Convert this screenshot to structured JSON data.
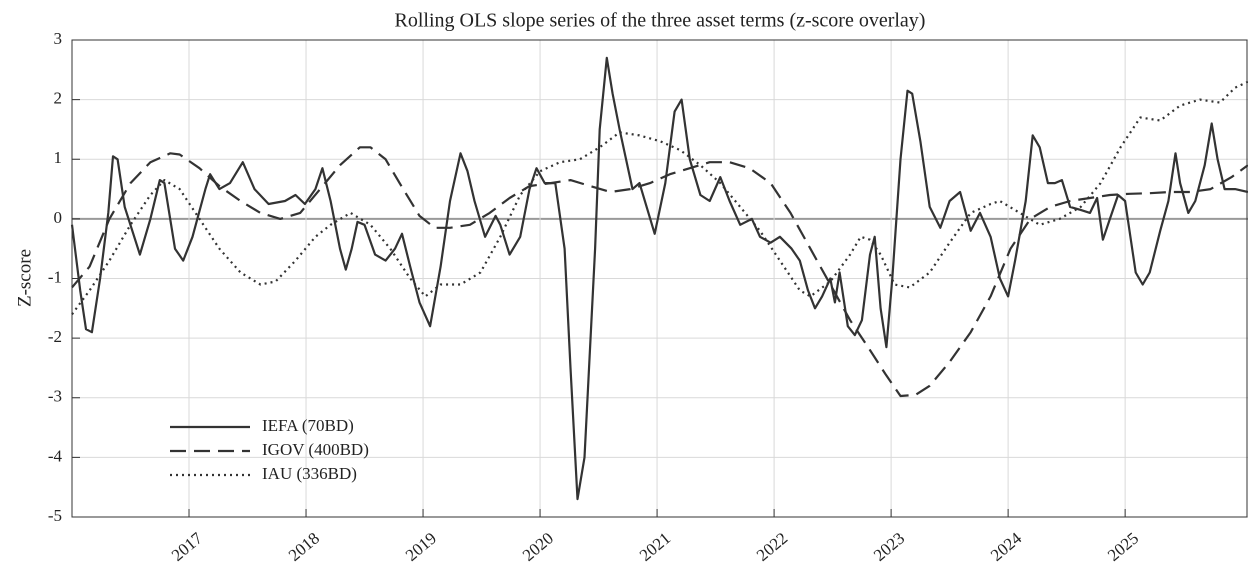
{
  "chart_data": {
    "type": "line",
    "title": "Rolling OLS slope series of the three asset terms (z-score overlay)",
    "ylabel": "Z-score",
    "xlim": [
      2016,
      2026.05
    ],
    "xticks": [
      2017,
      2018,
      2019,
      2020,
      2021,
      2022,
      2023,
      2024,
      2025
    ],
    "ylim": [
      -5,
      3
    ],
    "yticks": [
      -5,
      -4,
      -3,
      -2,
      -1,
      0,
      1,
      2,
      3
    ],
    "grid": true,
    "legend": "lower left",
    "series": [
      {
        "name": "IEFA (70BD)",
        "color": "#333333",
        "linestyle": "solid",
        "x": [
          2016,
          2016.07,
          2016.12,
          2016.17,
          2016.24,
          2016.31,
          2016.35,
          2016.39,
          2016.45,
          2016.58,
          2016.67,
          2016.75,
          2016.79,
          2016.88,
          2016.95,
          2017.03,
          2017.14,
          2017.18,
          2017.26,
          2017.35,
          2017.46,
          2017.56,
          2017.68,
          2017.82,
          2017.91,
          2017.99,
          2018.08,
          2018.14,
          2018.21,
          2018.29,
          2018.34,
          2018.39,
          2018.44,
          2018.5,
          2018.59,
          2018.68,
          2018.76,
          2018.82,
          2018.89,
          2018.97,
          2019.06,
          2019.15,
          2019.23,
          2019.32,
          2019.38,
          2019.44,
          2019.53,
          2019.62,
          2019.66,
          2019.74,
          2019.83,
          2019.91,
          2019.97,
          2020.04,
          2020.13,
          2020.21,
          2020.26,
          2020.32,
          2020.38,
          2020.47,
          2020.51,
          2020.57,
          2020.62,
          2020.68,
          2020.79,
          2020.85,
          2020.98,
          2021.07,
          2021.15,
          2021.21,
          2021.28,
          2021.37,
          2021.45,
          2021.54,
          2021.62,
          2021.71,
          2021.81,
          2021.88,
          2021.97,
          2022.05,
          2022.15,
          2022.22,
          2022.29,
          2022.35,
          2022.41,
          2022.48,
          2022.52,
          2022.56,
          2022.63,
          2022.69,
          2022.75,
          2022.82,
          2022.86,
          2022.91,
          2022.96,
          2023.01,
          2023.08,
          2023.14,
          2023.18,
          2023.25,
          2023.33,
          2023.42,
          2023.5,
          2023.59,
          2023.68,
          2023.76,
          2023.85,
          2023.93,
          2024,
          2024.06,
          2024.15,
          2024.21,
          2024.27,
          2024.34,
          2024.4,
          2024.46,
          2024.53,
          2024.62,
          2024.7,
          2024.76,
          2024.81,
          2024.87,
          2024.94,
          2025,
          2025.09,
          2025.15,
          2025.21,
          2025.3,
          2025.37,
          2025.43,
          2025.47,
          2025.54,
          2025.6,
          2025.68,
          2025.74,
          2025.79,
          2025.85,
          2025.94,
          2026.05
        ],
        "values": [
          -0.1,
          -1.2,
          -1.85,
          -1.9,
          -1.0,
          0.1,
          1.05,
          1.0,
          0.2,
          -0.6,
          0.0,
          0.65,
          0.6,
          -0.5,
          -0.7,
          -0.3,
          0.5,
          0.75,
          0.5,
          0.6,
          0.95,
          0.5,
          0.25,
          0.3,
          0.4,
          0.25,
          0.5,
          0.85,
          0.3,
          -0.5,
          -0.85,
          -0.5,
          -0.05,
          -0.1,
          -0.6,
          -0.7,
          -0.5,
          -0.25,
          -0.8,
          -1.4,
          -1.8,
          -0.8,
          0.3,
          1.1,
          0.8,
          0.3,
          -0.3,
          0.05,
          -0.1,
          -0.6,
          -0.3,
          0.5,
          0.85,
          0.6,
          0.6,
          -0.5,
          -2.5,
          -4.7,
          -4.0,
          -0.5,
          1.5,
          2.7,
          2.1,
          1.5,
          0.5,
          0.6,
          -0.25,
          0.6,
          1.8,
          2.0,
          1.0,
          0.4,
          0.3,
          0.7,
          0.3,
          -0.1,
          0.0,
          -0.3,
          -0.4,
          -0.3,
          -0.5,
          -0.7,
          -1.2,
          -1.5,
          -1.3,
          -1.0,
          -1.4,
          -0.9,
          -1.8,
          -1.95,
          -1.7,
          -0.6,
          -0.3,
          -1.5,
          -2.15,
          -1.0,
          1.0,
          2.15,
          2.1,
          1.3,
          0.2,
          -0.15,
          0.3,
          0.45,
          -0.2,
          0.1,
          -0.3,
          -1.0,
          -1.3,
          -0.7,
          0.3,
          1.4,
          1.2,
          0.6,
          0.6,
          0.65,
          0.2,
          0.15,
          0.1,
          0.35,
          -0.35,
          0.0,
          0.4,
          0.3,
          -0.9,
          -1.1,
          -0.9,
          -0.2,
          0.3,
          1.1,
          0.6,
          0.1,
          0.3,
          0.9,
          1.6,
          1.0,
          0.5,
          0.5,
          0.45
        ]
      },
      {
        "name": "IGOV (400BD)",
        "color": "#333333",
        "linestyle": "dashed",
        "x": [
          2016,
          2016.15,
          2016.32,
          2016.5,
          2016.67,
          2016.84,
          2016.92,
          2017.09,
          2017.26,
          2017.44,
          2017.61,
          2017.78,
          2017.95,
          2018.12,
          2018.29,
          2018.46,
          2018.55,
          2018.68,
          2018.8,
          2018.97,
          2019.1,
          2019.23,
          2019.4,
          2019.57,
          2019.74,
          2019.91,
          2020.09,
          2020.26,
          2020.43,
          2020.6,
          2020.77,
          2020.94,
          2021.11,
          2021.28,
          2021.45,
          2021.62,
          2021.79,
          2021.97,
          2022.14,
          2022.31,
          2022.48,
          2022.65,
          2022.82,
          2022.95,
          2023.08,
          2023.21,
          2023.33,
          2023.5,
          2023.68,
          2023.85,
          2024.02,
          2024.19,
          2024.36,
          2024.53,
          2024.7,
          2024.87,
          2025.04,
          2025.21,
          2025.38,
          2025.56,
          2025.73,
          2025.91,
          2026.05
        ],
        "values": [
          -1.15,
          -0.8,
          0.0,
          0.6,
          0.95,
          1.1,
          1.08,
          0.85,
          0.55,
          0.3,
          0.1,
          0.0,
          0.1,
          0.5,
          0.9,
          1.2,
          1.2,
          1.0,
          0.6,
          0.05,
          -0.15,
          -0.15,
          -0.1,
          0.1,
          0.35,
          0.55,
          0.6,
          0.65,
          0.55,
          0.45,
          0.5,
          0.6,
          0.75,
          0.85,
          0.95,
          0.95,
          0.85,
          0.6,
          0.1,
          -0.5,
          -1.1,
          -1.7,
          -2.2,
          -2.6,
          -2.97,
          -2.95,
          -2.8,
          -2.4,
          -1.9,
          -1.3,
          -0.5,
          0.0,
          0.2,
          0.3,
          0.35,
          0.4,
          0.42,
          0.43,
          0.45,
          0.45,
          0.5,
          0.7,
          0.9
        ]
      },
      {
        "name": "IAU (336BD)",
        "color": "#333333",
        "linestyle": "dotted",
        "x": [
          2016,
          2016.15,
          2016.32,
          2016.5,
          2016.67,
          2016.79,
          2016.92,
          2017.09,
          2017.26,
          2017.44,
          2017.61,
          2017.74,
          2017.91,
          2018.08,
          2018.21,
          2018.38,
          2018.55,
          2018.72,
          2018.89,
          2019.02,
          2019.15,
          2019.32,
          2019.49,
          2019.66,
          2019.83,
          2020,
          2020.17,
          2020.34,
          2020.51,
          2020.68,
          2020.85,
          2021.03,
          2021.2,
          2021.37,
          2021.54,
          2021.71,
          2021.88,
          2022.05,
          2022.22,
          2022.31,
          2022.48,
          2022.65,
          2022.74,
          2022.82,
          2022.91,
          2023.03,
          2023.16,
          2023.33,
          2023.5,
          2023.68,
          2023.85,
          2023.93,
          2024.1,
          2024.27,
          2024.44,
          2024.62,
          2024.79,
          2024.96,
          2025.13,
          2025.3,
          2025.47,
          2025.64,
          2025.81,
          2025.94,
          2026.05
        ],
        "values": [
          -1.6,
          -1.2,
          -0.7,
          -0.1,
          0.4,
          0.65,
          0.5,
          0.0,
          -0.5,
          -0.9,
          -1.1,
          -1.05,
          -0.7,
          -0.3,
          -0.1,
          0.1,
          -0.1,
          -0.5,
          -1.0,
          -1.3,
          -1.1,
          -1.1,
          -0.9,
          -0.3,
          0.4,
          0.8,
          0.95,
          1.0,
          1.2,
          1.45,
          1.4,
          1.3,
          1.15,
          0.9,
          0.6,
          0.2,
          -0.2,
          -0.7,
          -1.2,
          -1.3,
          -1.05,
          -0.6,
          -0.3,
          -0.35,
          -0.6,
          -1.1,
          -1.15,
          -0.9,
          -0.4,
          0.1,
          0.25,
          0.3,
          0.1,
          -0.1,
          0.0,
          0.2,
          0.6,
          1.2,
          1.7,
          1.65,
          1.9,
          2.0,
          1.95,
          2.2,
          2.3
        ]
      }
    ]
  }
}
